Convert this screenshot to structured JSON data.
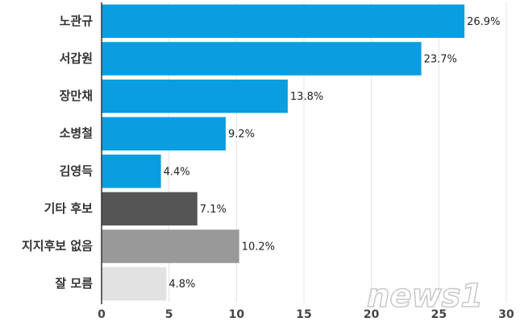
{
  "chart_data": {
    "type": "bar",
    "orientation": "horizontal",
    "categories": [
      "노관규",
      "서갑원",
      "장만채",
      "소병철",
      "김영득",
      "기타 후보",
      "지지후보 없음",
      "잘 모름"
    ],
    "values": [
      26.9,
      23.7,
      13.8,
      9.2,
      4.4,
      7.1,
      10.2,
      4.8
    ],
    "value_labels": [
      "26.9%",
      "23.7%",
      "13.8%",
      "9.2%",
      "4.4%",
      "7.1%",
      "10.2%",
      "4.8%"
    ],
    "colors": [
      "#0a9ee0",
      "#0a9ee0",
      "#0a9ee0",
      "#0a9ee0",
      "#0a9ee0",
      "#555555",
      "#999999",
      "#e2e2e2"
    ],
    "xlim": [
      0,
      30
    ],
    "xticks": [
      0,
      5,
      10,
      15,
      20,
      25,
      30
    ],
    "grid": true,
    "watermark": "news1"
  }
}
